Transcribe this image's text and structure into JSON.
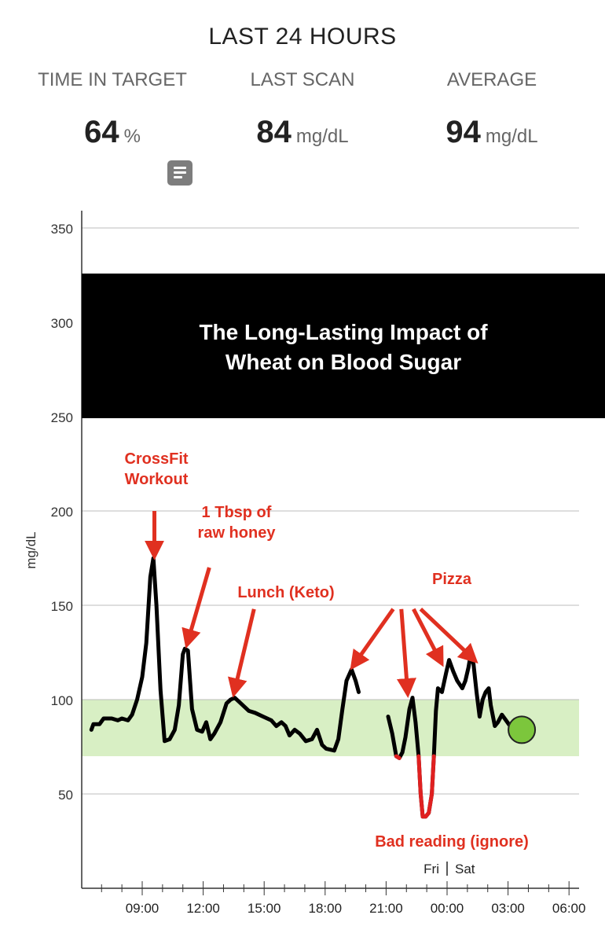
{
  "header": {
    "title": "LAST 24 HOURS",
    "stats": [
      {
        "label": "TIME IN TARGET",
        "value": "64",
        "unit": "%"
      },
      {
        "label": "LAST SCAN",
        "value": "84",
        "unit": "mg/dL"
      },
      {
        "label": "AVERAGE",
        "value": "94",
        "unit": "mg/dL"
      }
    ],
    "note_icon": "notes-icon"
  },
  "colors": {
    "target_band": "#d8efc4",
    "line": "#000000",
    "low_segment": "#e02020",
    "annotation": "#e03020",
    "current_marker": "#7cc63c",
    "banner": "#000000"
  },
  "chart_data": {
    "type": "line",
    "ylabel": "mg/dL",
    "ylim": [
      0,
      360
    ],
    "yticks": [
      {
        "value": 50,
        "label": "50"
      },
      {
        "value": 100,
        "label": "100"
      },
      {
        "value": 150,
        "label": "150"
      },
      {
        "value": 200,
        "label": "200"
      },
      {
        "value": 250,
        "label": "250"
      },
      {
        "value": 300,
        "label": "300"
      },
      {
        "value": 350,
        "label": "350"
      }
    ],
    "xlim": [
      6.5,
      30.3
    ],
    "xticks": [
      {
        "value": 9,
        "label": "09:00"
      },
      {
        "value": 12,
        "label": "12:00"
      },
      {
        "value": 15,
        "label": "15:00"
      },
      {
        "value": 18,
        "label": "18:00"
      },
      {
        "value": 21,
        "label": "21:00"
      },
      {
        "value": 24,
        "label": "00:00"
      },
      {
        "value": 27,
        "label": "03:00"
      },
      {
        "value": 30,
        "label": "06:00"
      }
    ],
    "day_divider": {
      "value": 24,
      "left": "Fri",
      "right": "Sat"
    },
    "target_range": [
      70,
      100
    ],
    "grid": true,
    "low_threshold": 70,
    "segments": [
      [
        [
          6.5,
          84
        ],
        [
          6.6,
          87
        ],
        [
          6.9,
          87
        ],
        [
          7.1,
          90
        ],
        [
          7.5,
          90
        ],
        [
          7.8,
          89
        ],
        [
          8.0,
          90
        ],
        [
          8.3,
          89
        ],
        [
          8.5,
          92
        ],
        [
          8.75,
          100
        ],
        [
          9.0,
          112
        ],
        [
          9.2,
          130
        ],
        [
          9.4,
          165
        ],
        [
          9.55,
          175
        ],
        [
          9.7,
          150
        ],
        [
          9.9,
          105
        ],
        [
          10.1,
          78
        ],
        [
          10.35,
          79
        ],
        [
          10.6,
          84
        ],
        [
          10.8,
          97
        ],
        [
          11.0,
          124
        ],
        [
          11.1,
          127
        ],
        [
          11.25,
          126
        ],
        [
          11.45,
          95
        ],
        [
          11.7,
          84
        ],
        [
          11.95,
          83
        ],
        [
          12.15,
          88
        ],
        [
          12.35,
          79
        ],
        [
          12.55,
          82
        ],
        [
          12.85,
          88
        ],
        [
          13.15,
          98
        ],
        [
          13.35,
          100
        ],
        [
          13.55,
          101
        ],
        [
          13.85,
          98
        ],
        [
          14.25,
          94
        ],
        [
          14.55,
          93
        ],
        [
          14.95,
          91
        ],
        [
          15.35,
          89
        ],
        [
          15.6,
          86
        ],
        [
          15.85,
          88
        ],
        [
          16.05,
          86
        ],
        [
          16.25,
          81
        ],
        [
          16.5,
          84
        ],
        [
          16.75,
          82
        ],
        [
          17.05,
          78
        ],
        [
          17.35,
          79
        ],
        [
          17.6,
          84
        ],
        [
          17.85,
          76
        ],
        [
          18.05,
          74
        ],
        [
          18.45,
          73
        ],
        [
          18.65,
          79
        ],
        [
          18.85,
          95
        ],
        [
          19.05,
          110
        ],
        [
          19.3,
          116
        ],
        [
          19.5,
          110
        ],
        [
          19.65,
          104
        ]
      ],
      [
        [
          21.1,
          91
        ],
        [
          21.3,
          82
        ],
        [
          21.5,
          70
        ],
        [
          21.65,
          69
        ],
        [
          21.8,
          72
        ],
        [
          21.95,
          80
        ],
        [
          22.15,
          95
        ],
        [
          22.3,
          101
        ],
        [
          22.45,
          88
        ],
        [
          22.6,
          70
        ],
        [
          22.7,
          50
        ],
        [
          22.8,
          38
        ],
        [
          22.95,
          38
        ],
        [
          23.1,
          40
        ],
        [
          23.25,
          50
        ],
        [
          23.35,
          70
        ],
        [
          23.45,
          94
        ],
        [
          23.55,
          106
        ],
        [
          23.75,
          104
        ],
        [
          23.95,
          114
        ],
        [
          24.1,
          121
        ],
        [
          24.3,
          115
        ],
        [
          24.5,
          110
        ],
        [
          24.75,
          106
        ],
        [
          24.9,
          110
        ],
        [
          25.05,
          117
        ],
        [
          25.15,
          123
        ],
        [
          25.3,
          119
        ],
        [
          25.45,
          104
        ],
        [
          25.6,
          91
        ],
        [
          25.75,
          100
        ],
        [
          25.9,
          104
        ],
        [
          26.05,
          106
        ],
        [
          26.15,
          97
        ],
        [
          26.35,
          86
        ],
        [
          26.5,
          88
        ],
        [
          26.7,
          92
        ],
        [
          26.9,
          89
        ],
        [
          27.1,
          86
        ],
        [
          27.25,
          84
        ]
      ]
    ],
    "current_reading": {
      "x": 27.25,
      "y": 84
    },
    "overlay_banner": [
      "The Long-Lasting Impact of",
      "Wheat on Blood Sugar"
    ],
    "annotations": [
      {
        "lines": [
          "CrossFit",
          "Workout"
        ],
        "arrows": [
          {
            "from": [
              9.6,
              200
            ],
            "to": [
              9.6,
              178
            ]
          }
        ]
      },
      {
        "lines": [
          "1 Tbsp of",
          "raw honey"
        ],
        "arrows": [
          {
            "from": [
              12.3,
              170
            ],
            "to": [
              11.25,
              131
            ]
          }
        ]
      },
      {
        "lines": [
          "Lunch (Keto)"
        ],
        "arrows": [
          {
            "from": [
              14.5,
              148
            ],
            "to": [
              13.55,
              105
            ]
          }
        ]
      },
      {
        "lines": [
          "Pizza"
        ],
        "arrows": [
          {
            "from": [
              21.35,
              148
            ],
            "to": [
              19.45,
              119
            ]
          },
          {
            "from": [
              21.75,
              148
            ],
            "to": [
              22.05,
              105
            ]
          },
          {
            "from": [
              22.35,
              148
            ],
            "to": [
              23.65,
              121
            ]
          },
          {
            "from": [
              22.7,
              148
            ],
            "to": [
              25.25,
              122
            ]
          }
        ]
      },
      {
        "lines": [
          "Bad reading (ignore)"
        ],
        "arrows": []
      }
    ]
  }
}
